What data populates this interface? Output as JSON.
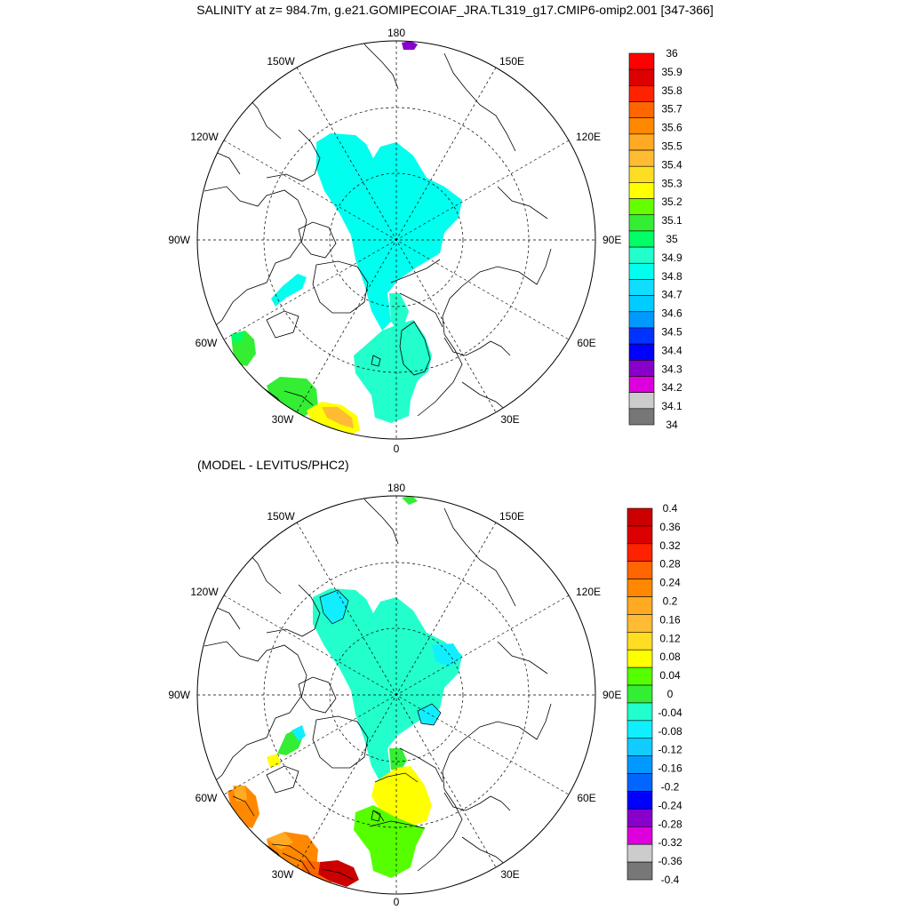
{
  "title": "SALINITY at z= 984.7m, g.e21.GOMIPECOIAF_JRA.TL319_g17.CMIP6-omip2.001 [347-366]",
  "subtitle": "(MODEL - LEVITUS/PHC2)",
  "longitude_labels": {
    "top": "180",
    "bottom": "0",
    "left": "90W",
    "right": "90E",
    "upper_left_1": "150W",
    "upper_left_2": "120W",
    "upper_right_1": "150E",
    "upper_right_2": "120E",
    "lower_left_1": "60W",
    "lower_left_2": "30W",
    "lower_right_1": "60E",
    "lower_right_2": "30E"
  },
  "colorbar_top": {
    "colors": [
      "#ff0000",
      "#dd0000",
      "#ff2200",
      "#ff6600",
      "#ff8800",
      "#ffaa22",
      "#ffbb33",
      "#ffdd22",
      "#ffff00",
      "#66ff00",
      "#33ee33",
      "#00ff66",
      "#22ffcc",
      "#00ffee",
      "#11ddff",
      "#00ccff",
      "#0099ff",
      "#0033ff",
      "#0000ff",
      "#8800cc",
      "#dd00dd",
      "#cccccc",
      "#777777"
    ],
    "labels": [
      "36",
      "35.9",
      "35.8",
      "35.7",
      "35.6",
      "35.5",
      "35.4",
      "35.3",
      "35.2",
      "35.1",
      "35",
      "34.9",
      "34.8",
      "34.7",
      "34.6",
      "34.5",
      "34.4",
      "34.3",
      "34.2",
      "34.1",
      "34"
    ]
  },
  "colorbar_bottom": {
    "colors": [
      "#cc0000",
      "#dd0000",
      "#ff2200",
      "#ff6600",
      "#ff8800",
      "#ffaa22",
      "#ffbb33",
      "#ffdd22",
      "#ffff00",
      "#55ff00",
      "#33ee33",
      "#22ffcc",
      "#11eeff",
      "#11ccff",
      "#0099ff",
      "#0066ff",
      "#0000ff",
      "#8800cc",
      "#dd00dd",
      "#cccccc",
      "#777777"
    ],
    "labels": [
      "0.4",
      "0.36",
      "0.32",
      "0.28",
      "0.24",
      "0.2",
      "0.16",
      "0.12",
      "0.08",
      "0.04",
      "0",
      "-0.04",
      "-0.08",
      "-0.12",
      "-0.16",
      "-0.2",
      "-0.24",
      "-0.28",
      "-0.32",
      "-0.36",
      "-0.4"
    ]
  }
}
